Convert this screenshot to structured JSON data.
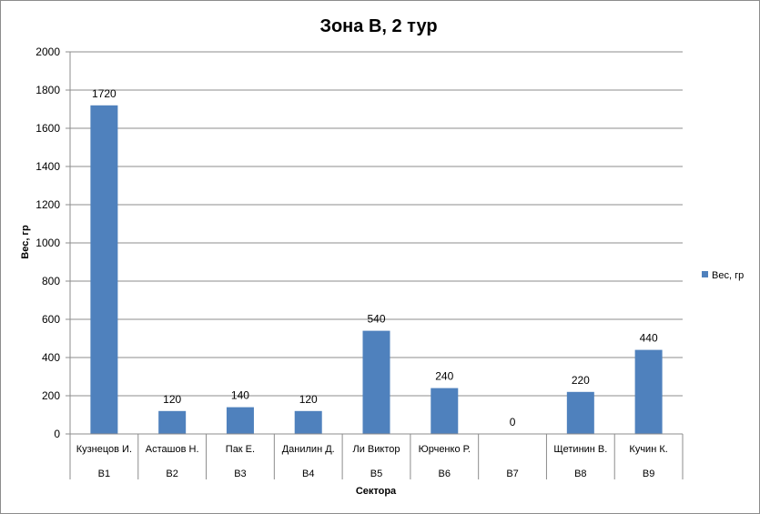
{
  "chart_data": {
    "type": "bar",
    "title": "Зона В, 2 тур",
    "xlabel": "Сектора",
    "ylabel": "Вес, гр",
    "ylim": [
      0,
      2000
    ],
    "yticks": [
      "0",
      "200",
      "400",
      "600",
      "800",
      "1000",
      "1200",
      "1400",
      "1600",
      "1800",
      "2000"
    ],
    "grid": true,
    "legend_position": "right",
    "bar_color": "#4f81bd",
    "categories": [
      {
        "name": "Кузнецов И.",
        "sector": "В1"
      },
      {
        "name": "Асташов Н.",
        "sector": "В2"
      },
      {
        "name": "Пак Е.",
        "sector": "В3"
      },
      {
        "name": "Данилин Д.",
        "sector": "В4"
      },
      {
        "name": "Ли Виктор",
        "sector": "В5"
      },
      {
        "name": "Юрченко Р.",
        "sector": "В6"
      },
      {
        "name": "",
        "sector": "В7"
      },
      {
        "name": "Щетинин В.",
        "sector": "В8"
      },
      {
        "name": "Кучин К.",
        "sector": "В9"
      }
    ],
    "series": [
      {
        "name": "Вес, гр",
        "values": [
          1720,
          120,
          140,
          120,
          540,
          240,
          0,
          220,
          440
        ]
      }
    ]
  }
}
